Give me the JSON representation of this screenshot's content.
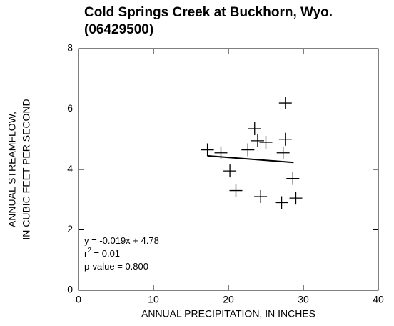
{
  "chart_data": {
    "type": "scatter",
    "title": [
      "Cold Springs Creek at Buckhorn, Wyo.",
      "(06429500)"
    ],
    "xlabel": "ANNUAL PRECIPITATION, IN INCHES",
    "ylabel": [
      "ANNUAL STREAMFLOW,",
      "IN CUBIC FEET PER SECOND"
    ],
    "x": [
      17.2,
      19,
      20.2,
      21,
      22.6,
      23.5,
      23.9,
      24.3,
      25,
      27.1,
      27.3,
      27.6,
      27.6,
      28.6,
      29
    ],
    "y": [
      4.65,
      4.55,
      3.95,
      3.3,
      4.65,
      5.35,
      4.95,
      3.1,
      4.9,
      2.9,
      4.55,
      5.0,
      6.2,
      3.7,
      3.05
    ],
    "color": "#000000",
    "fit": {
      "x": [
        17.3,
        28.7
      ],
      "y": [
        4.45,
        4.23
      ]
    },
    "annotations": [
      [
        "y = -0.019x + 4.78"
      ],
      [
        "r",
        "2",
        " = 0.01"
      ],
      [
        "p-value = 0.800"
      ]
    ],
    "xlim": [
      0,
      40
    ],
    "xticks": [
      0,
      10,
      20,
      30,
      40
    ],
    "ylim": [
      0,
      8
    ],
    "yticks": [
      0,
      2,
      4,
      6,
      8
    ]
  }
}
